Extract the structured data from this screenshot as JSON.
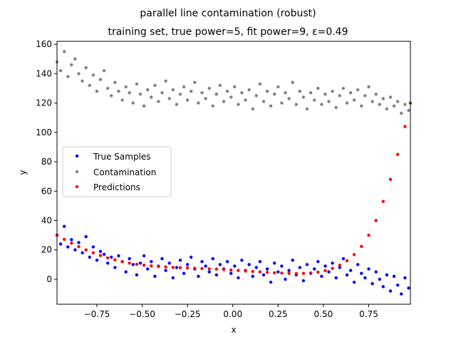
{
  "chart_data": {
    "type": "scatter",
    "title": "parallel line contamination (robust)",
    "subtitle": "training set, true power=5, fit power=9, ε=0.49",
    "xlabel": "x",
    "ylabel": "y",
    "xlim": [
      -0.97,
      0.98
    ],
    "ylim": [
      -17,
      162
    ],
    "x_ticks": [
      -0.75,
      -0.5,
      -0.25,
      0.0,
      0.25,
      0.5,
      0.75
    ],
    "x_tick_labels": [
      "−0.75",
      "−0.50",
      "−0.25",
      "0.00",
      "0.25",
      "0.50",
      "0.75"
    ],
    "y_ticks": [
      0,
      20,
      40,
      60,
      80,
      100,
      120,
      140,
      160
    ],
    "y_tick_labels": [
      "0",
      "20",
      "40",
      "60",
      "80",
      "100",
      "120",
      "140",
      "160"
    ],
    "grid": false,
    "legend_position": "center-left",
    "series": [
      {
        "name": "True Samples",
        "color": "#0000ff",
        "points": [
          [
            -0.97,
            30
          ],
          [
            -0.95,
            24
          ],
          [
            -0.93,
            36
          ],
          [
            -0.91,
            22
          ],
          [
            -0.89,
            27
          ],
          [
            -0.87,
            20
          ],
          [
            -0.85,
            25
          ],
          [
            -0.83,
            18
          ],
          [
            -0.81,
            29
          ],
          [
            -0.79,
            15
          ],
          [
            -0.77,
            22
          ],
          [
            -0.75,
            13
          ],
          [
            -0.73,
            19
          ],
          [
            -0.71,
            17
          ],
          [
            -0.69,
            11
          ],
          [
            -0.67,
            15
          ],
          [
            -0.65,
            8
          ],
          [
            -0.63,
            16
          ],
          [
            -0.61,
            12
          ],
          [
            -0.59,
            5
          ],
          [
            -0.57,
            14
          ],
          [
            -0.55,
            10
          ],
          [
            -0.53,
            3
          ],
          [
            -0.51,
            11
          ],
          [
            -0.49,
            16
          ],
          [
            -0.47,
            7
          ],
          [
            -0.45,
            12
          ],
          [
            -0.43,
            2
          ],
          [
            -0.41,
            9
          ],
          [
            -0.39,
            14
          ],
          [
            -0.37,
            6
          ],
          [
            -0.35,
            11
          ],
          [
            -0.33,
            1
          ],
          [
            -0.31,
            8
          ],
          [
            -0.29,
            13
          ],
          [
            -0.27,
            4
          ],
          [
            -0.25,
            10
          ],
          [
            -0.23,
            15
          ],
          [
            -0.21,
            7
          ],
          [
            -0.19,
            2
          ],
          [
            -0.17,
            12
          ],
          [
            -0.15,
            9
          ],
          [
            -0.13,
            5
          ],
          [
            -0.11,
            14
          ],
          [
            -0.09,
            3
          ],
          [
            -0.07,
            10
          ],
          [
            -0.05,
            7
          ],
          [
            -0.03,
            12
          ],
          [
            -0.01,
            4
          ],
          [
            0.01,
            9
          ],
          [
            0.03,
            1
          ],
          [
            0.05,
            13
          ],
          [
            0.07,
            6
          ],
          [
            0.09,
            10
          ],
          [
            0.11,
            2
          ],
          [
            0.13,
            8
          ],
          [
            0.15,
            12
          ],
          [
            0.17,
            3
          ],
          [
            0.19,
            7
          ],
          [
            0.21,
            -2
          ],
          [
            0.23,
            11
          ],
          [
            0.25,
            5
          ],
          [
            0.27,
            9
          ],
          [
            0.29,
            0
          ],
          [
            0.31,
            6
          ],
          [
            0.33,
            13
          ],
          [
            0.35,
            3
          ],
          [
            0.37,
            8
          ],
          [
            0.39,
            -1
          ],
          [
            0.41,
            10
          ],
          [
            0.43,
            4
          ],
          [
            0.45,
            7
          ],
          [
            0.47,
            12
          ],
          [
            0.49,
            2
          ],
          [
            0.51,
            9
          ],
          [
            0.53,
            5
          ],
          [
            0.55,
            11
          ],
          [
            0.57,
            1
          ],
          [
            0.59,
            8
          ],
          [
            0.61,
            14
          ],
          [
            0.63,
            3
          ],
          [
            0.65,
            6
          ],
          [
            0.67,
            -2
          ],
          [
            0.69,
            10
          ],
          [
            0.71,
            4
          ],
          [
            0.73,
            1
          ],
          [
            0.75,
            7
          ],
          [
            0.77,
            -3
          ],
          [
            0.79,
            5
          ],
          [
            0.81,
            0
          ],
          [
            0.83,
            -5
          ],
          [
            0.85,
            3
          ],
          [
            0.87,
            -8
          ],
          [
            0.89,
            2
          ],
          [
            0.91,
            -4
          ],
          [
            0.93,
            -10
          ],
          [
            0.95,
            1
          ],
          [
            0.97,
            -6
          ]
        ]
      },
      {
        "name": "Contamination",
        "color": "#808080",
        "points": [
          [
            -0.97,
            148
          ],
          [
            -0.95,
            142
          ],
          [
            -0.93,
            155
          ],
          [
            -0.91,
            138
          ],
          [
            -0.89,
            146
          ],
          [
            -0.87,
            150
          ],
          [
            -0.85,
            140
          ],
          [
            -0.83,
            135
          ],
          [
            -0.81,
            144
          ],
          [
            -0.79,
            132
          ],
          [
            -0.77,
            139
          ],
          [
            -0.75,
            128
          ],
          [
            -0.73,
            136
          ],
          [
            -0.71,
            142
          ],
          [
            -0.69,
            130
          ],
          [
            -0.67,
            125
          ],
          [
            -0.65,
            134
          ],
          [
            -0.63,
            128
          ],
          [
            -0.61,
            122
          ],
          [
            -0.59,
            131
          ],
          [
            -0.57,
            127
          ],
          [
            -0.55,
            120
          ],
          [
            -0.53,
            133
          ],
          [
            -0.51,
            126
          ],
          [
            -0.49,
            118
          ],
          [
            -0.47,
            129
          ],
          [
            -0.45,
            124
          ],
          [
            -0.43,
            132
          ],
          [
            -0.41,
            121
          ],
          [
            -0.39,
            127
          ],
          [
            -0.37,
            135
          ],
          [
            -0.35,
            123
          ],
          [
            -0.33,
            129
          ],
          [
            -0.31,
            119
          ],
          [
            -0.29,
            126
          ],
          [
            -0.27,
            131
          ],
          [
            -0.25,
            122
          ],
          [
            -0.23,
            128
          ],
          [
            -0.21,
            134
          ],
          [
            -0.19,
            120
          ],
          [
            -0.17,
            127
          ],
          [
            -0.15,
            123
          ],
          [
            -0.13,
            130
          ],
          [
            -0.11,
            118
          ],
          [
            -0.09,
            126
          ],
          [
            -0.07,
            132
          ],
          [
            -0.05,
            121
          ],
          [
            -0.03,
            128
          ],
          [
            -0.01,
            124
          ],
          [
            0.01,
            131
          ],
          [
            0.03,
            119
          ],
          [
            0.05,
            127
          ],
          [
            0.07,
            122
          ],
          [
            0.09,
            129
          ],
          [
            0.11,
            116
          ],
          [
            0.13,
            125
          ],
          [
            0.15,
            133
          ],
          [
            0.17,
            121
          ],
          [
            0.19,
            128
          ],
          [
            0.21,
            118
          ],
          [
            0.23,
            126
          ],
          [
            0.25,
            131
          ],
          [
            0.27,
            120
          ],
          [
            0.29,
            127
          ],
          [
            0.31,
            123
          ],
          [
            0.33,
            134
          ],
          [
            0.35,
            119
          ],
          [
            0.37,
            128
          ],
          [
            0.39,
            124
          ],
          [
            0.41,
            116
          ],
          [
            0.43,
            127
          ],
          [
            0.45,
            122
          ],
          [
            0.47,
            130
          ],
          [
            0.49,
            119
          ],
          [
            0.51,
            126
          ],
          [
            0.53,
            121
          ],
          [
            0.55,
            128
          ],
          [
            0.57,
            117
          ],
          [
            0.59,
            125
          ],
          [
            0.61,
            130
          ],
          [
            0.63,
            120
          ],
          [
            0.65,
            127
          ],
          [
            0.67,
            122
          ],
          [
            0.69,
            129
          ],
          [
            0.71,
            118
          ],
          [
            0.73,
            125
          ],
          [
            0.75,
            131
          ],
          [
            0.77,
            121
          ],
          [
            0.79,
            126
          ],
          [
            0.81,
            119
          ],
          [
            0.83,
            123
          ],
          [
            0.85,
            116
          ],
          [
            0.87,
            124
          ],
          [
            0.89,
            118
          ],
          [
            0.91,
            121
          ],
          [
            0.93,
            113
          ],
          [
            0.95,
            119
          ],
          [
            0.97,
            115
          ]
        ]
      },
      {
        "name": "Predictions",
        "color": "#ff0000",
        "points": [
          [
            -0.97,
            30
          ],
          [
            -0.93,
            27.2
          ],
          [
            -0.89,
            24.6
          ],
          [
            -0.85,
            22.2
          ],
          [
            -0.81,
            20
          ],
          [
            -0.77,
            18
          ],
          [
            -0.73,
            16.2
          ],
          [
            -0.69,
            14.6
          ],
          [
            -0.65,
            13.2
          ],
          [
            -0.61,
            12
          ],
          [
            -0.57,
            11
          ],
          [
            -0.53,
            10.2
          ],
          [
            -0.49,
            9.6
          ],
          [
            -0.45,
            9.1
          ],
          [
            -0.41,
            8.7
          ],
          [
            -0.37,
            8.4
          ],
          [
            -0.33,
            8.1
          ],
          [
            -0.29,
            7.9
          ],
          [
            -0.25,
            7.7
          ],
          [
            -0.21,
            7.5
          ],
          [
            -0.17,
            7.3
          ],
          [
            -0.13,
            7.1
          ],
          [
            -0.09,
            6.9
          ],
          [
            -0.05,
            6.6
          ],
          [
            -0.01,
            6.3
          ],
          [
            0.03,
            6
          ],
          [
            0.07,
            5.6
          ],
          [
            0.11,
            5.3
          ],
          [
            0.15,
            5
          ],
          [
            0.19,
            4.7
          ],
          [
            0.23,
            4.4
          ],
          [
            0.27,
            4.2
          ],
          [
            0.31,
            4
          ],
          [
            0.35,
            3.9
          ],
          [
            0.39,
            4
          ],
          [
            0.43,
            4.3
          ],
          [
            0.47,
            4.9
          ],
          [
            0.51,
            5.9
          ],
          [
            0.55,
            7.4
          ],
          [
            0.59,
            9.6
          ],
          [
            0.63,
            12.6
          ],
          [
            0.67,
            16.8
          ],
          [
            0.71,
            22.4
          ],
          [
            0.75,
            30
          ],
          [
            0.79,
            40
          ],
          [
            0.83,
            53
          ],
          [
            0.87,
            68
          ],
          [
            0.91,
            85
          ],
          [
            0.95,
            104
          ],
          [
            0.98,
            120
          ]
        ]
      }
    ]
  }
}
